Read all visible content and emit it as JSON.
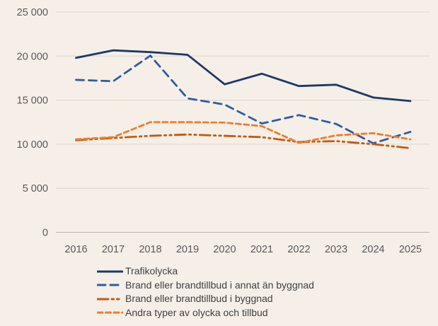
{
  "chart_data": {
    "type": "line",
    "title": "",
    "xlabel": "",
    "ylabel": "",
    "categories": [
      "2016",
      "2017",
      "2018",
      "2019",
      "2020",
      "2021",
      "2022",
      "2023",
      "2024",
      "2025"
    ],
    "series": [
      {
        "name": "Trafikolycka",
        "color": "#1f3864",
        "dash": "solid",
        "values": [
          19800,
          20650,
          20450,
          20150,
          16800,
          18000,
          16600,
          16750,
          15300,
          14900
        ]
      },
      {
        "name": "Brand eller brandtillbud i annat än byggnad",
        "color": "#2e5d9e",
        "dash": "long-dash",
        "values": [
          17300,
          17150,
          20050,
          15200,
          14500,
          12350,
          13300,
          12300,
          10100,
          11400
        ]
      },
      {
        "name": "Brand eller brandtillbud i byggnad",
        "color": "#c55a11",
        "dash": "dash-dot-dot",
        "values": [
          10450,
          10700,
          10950,
          11100,
          10950,
          10800,
          10250,
          10350,
          10000,
          9550
        ]
      },
      {
        "name": "Andra typer av olycka och tillbud",
        "color": "#ee7d2e",
        "dash": "short-dash",
        "values": [
          10550,
          10800,
          12500,
          12500,
          12450,
          12050,
          10150,
          11000,
          11250,
          10550
        ]
      }
    ],
    "ylim": [
      0,
      25000
    ],
    "yticks": {
      "values": [
        0,
        5000,
        10000,
        15000,
        20000,
        25000
      ],
      "labels": [
        "0",
        "5 000",
        "10 000",
        "15 000",
        "20 000",
        "25 000"
      ]
    },
    "grid": "horizontal-only",
    "legend_position": "bottom-left"
  },
  "colors": {
    "background": "#f5efe8",
    "gridline": "#dbd6d0",
    "zero_line": "#b9b4ae",
    "axis_text": "#595959",
    "legend_text": "#404040"
  }
}
